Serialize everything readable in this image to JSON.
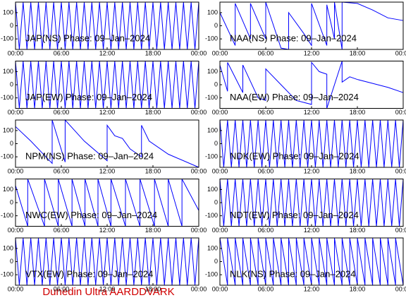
{
  "footer": "Dunedin Ultra AARDDVARK",
  "chart_data": [
    {
      "type": "line",
      "title": "JAP(NS) Phase: 09–Jan–2024",
      "color": "#0000ff",
      "x": [
        0,
        0.5,
        1,
        1.5,
        2,
        2.5,
        3,
        3.5,
        4,
        4.5,
        5,
        5.5,
        6,
        6.5,
        7,
        7.5,
        8,
        8.5,
        9,
        9.5,
        10,
        10.5,
        11,
        11.5,
        12,
        12.5,
        13,
        13.5,
        14,
        14.5,
        15,
        15.5,
        16,
        16.5,
        17,
        17.5,
        18,
        18.5,
        19,
        19.5,
        20,
        20.5,
        21,
        21.5,
        22,
        22.5,
        23,
        23.5,
        24
      ],
      "values": [
        180,
        -180,
        180,
        -180,
        180,
        -180,
        180,
        -180,
        180,
        -180,
        180,
        -180,
        180,
        -180,
        180,
        -180,
        180,
        -180,
        180,
        -180,
        180,
        -180,
        180,
        -180,
        180,
        -180,
        180,
        -180,
        180,
        -180,
        180,
        -180,
        180,
        -180,
        180,
        -180,
        180,
        -180,
        180,
        -180,
        180,
        -180,
        180,
        -180,
        180,
        -180,
        180,
        -180,
        180
      ],
      "xlim": [
        0,
        24
      ],
      "ylim": [
        -180,
        180
      ],
      "yticks": [
        100,
        0,
        -100
      ],
      "xticks": [
        {
          "value": 0,
          "label": "00:00"
        },
        {
          "value": 6,
          "label": "06:00"
        },
        {
          "value": 12,
          "label": "12:00"
        },
        {
          "value": 18,
          "label": "18:00"
        },
        {
          "value": 24,
          "label": "00:00"
        }
      ]
    },
    {
      "type": "line",
      "title": "NAA(NS) Phase: 09–Jan–2024",
      "color": "#0000ff",
      "x": [
        0,
        2,
        2,
        4,
        4,
        6,
        6,
        8,
        9,
        9,
        11,
        12,
        12,
        14,
        14,
        15,
        15,
        16,
        16,
        18,
        20,
        22,
        24
      ],
      "values": [
        100,
        -150,
        170,
        -100,
        170,
        -100,
        180,
        -170,
        -180,
        100,
        -60,
        -150,
        170,
        -150,
        160,
        -100,
        180,
        -180,
        180,
        170,
        120,
        60,
        40
      ],
      "xlim": [
        0,
        24
      ],
      "ylim": [
        -180,
        180
      ],
      "yticks": [
        100,
        0,
        -100
      ],
      "xticks": [
        {
          "value": 0,
          "label": "00:00"
        },
        {
          "value": 6,
          "label": "06:00"
        },
        {
          "value": 12,
          "label": "12:00"
        },
        {
          "value": 18,
          "label": "18:00"
        },
        {
          "value": 24,
          "label": "00:00"
        }
      ]
    },
    {
      "type": "line",
      "title": "JAP(EW) Phase: 09–Jan–2024",
      "color": "#0000ff",
      "x": [
        0,
        0.5,
        1,
        1.5,
        2,
        2.5,
        3,
        3.5,
        4,
        4.5,
        5,
        5.5,
        6,
        6.5,
        7,
        7.5,
        8,
        8.5,
        9,
        9.5,
        10,
        10.5,
        11,
        11.5,
        12,
        12.5,
        13,
        13.5,
        14,
        14.5,
        15,
        15.5,
        16,
        16.5,
        17,
        17.5,
        18,
        18.5,
        19,
        19.5,
        20,
        20.5,
        21,
        21.5,
        22,
        22.5,
        23,
        23.5,
        24
      ],
      "values": [
        180,
        -180,
        180,
        -180,
        180,
        -180,
        180,
        -180,
        180,
        -180,
        180,
        -180,
        180,
        -180,
        180,
        -180,
        180,
        -180,
        180,
        -180,
        180,
        -180,
        180,
        -180,
        180,
        -180,
        180,
        -180,
        180,
        -180,
        180,
        -180,
        180,
        -180,
        180,
        -180,
        180,
        -180,
        180,
        -180,
        180,
        -180,
        180,
        -180,
        180,
        -180,
        180,
        -180,
        180
      ],
      "xlim": [
        0,
        24
      ],
      "ylim": [
        -180,
        180
      ],
      "yticks": [
        100,
        0,
        -100
      ],
      "xticks": [
        {
          "value": 0,
          "label": "00:00"
        },
        {
          "value": 6,
          "label": "06:00"
        },
        {
          "value": 12,
          "label": "12:00"
        },
        {
          "value": 18,
          "label": "18:00"
        },
        {
          "value": 24,
          "label": "00:00"
        }
      ]
    },
    {
      "type": "line",
      "title": "NAA(EW) Phase: 09–Jan–2024",
      "color": "#0000ff",
      "x": [
        0,
        1,
        1,
        3,
        3,
        5,
        6,
        6,
        8,
        10,
        12,
        12,
        13,
        14,
        14,
        16,
        16,
        17,
        18,
        20,
        22,
        24
      ],
      "values": [
        150,
        -50,
        170,
        -60,
        150,
        -100,
        -120,
        120,
        0,
        -120,
        -150,
        170,
        100,
        80,
        -180,
        180,
        20,
        60,
        40,
        10,
        -20,
        -60
      ],
      "xlim": [
        0,
        24
      ],
      "ylim": [
        -180,
        180
      ],
      "yticks": [
        100,
        0,
        -100
      ],
      "xticks": [
        {
          "value": 0,
          "label": "00:00"
        },
        {
          "value": 6,
          "label": "06:00"
        },
        {
          "value": 12,
          "label": "12:00"
        },
        {
          "value": 18,
          "label": "18:00"
        },
        {
          "value": 24,
          "label": "00:00"
        }
      ]
    },
    {
      "type": "line",
      "title": "NPM(NS) Phase: 09–Jan–2024",
      "color": "#0000ff",
      "x": [
        0,
        2,
        4.8,
        4.8,
        6.5,
        6.5,
        9,
        12,
        12,
        13,
        14,
        15,
        16.5,
        16.5,
        17.5,
        20,
        24
      ],
      "values": [
        130,
        20,
        -150,
        180,
        -140,
        180,
        20,
        -130,
        140,
        60,
        40,
        -40,
        -100,
        140,
        20,
        -80,
        -180
      ],
      "xlim": [
        0,
        24
      ],
      "ylim": [
        -180,
        180
      ],
      "yticks": [
        100,
        0,
        -100
      ],
      "xticks": [
        {
          "value": 0,
          "label": "00:00"
        },
        {
          "value": 6,
          "label": "06:00"
        },
        {
          "value": 12,
          "label": "12:00"
        },
        {
          "value": 18,
          "label": "18:00"
        },
        {
          "value": 24,
          "label": "00:00"
        }
      ]
    },
    {
      "type": "line",
      "title": "NDK(EW) Phase: 09–Jan–2024",
      "color": "#0000ff",
      "x": [
        0,
        0.5,
        1,
        1.5,
        2,
        2.5,
        3,
        3.5,
        4,
        4.5,
        5,
        5.5,
        6,
        6.5,
        7,
        7.5,
        8,
        8.5,
        9,
        9.5,
        10,
        10.5,
        11,
        11.5,
        12,
        12.5,
        13,
        13.5,
        14,
        14.5,
        15,
        15.5,
        16,
        16.5,
        17,
        17.5,
        18,
        18.5,
        19,
        19.5,
        20,
        20.5,
        21,
        21.5,
        22,
        22.5,
        23,
        23.5,
        24
      ],
      "values": [
        180,
        -180,
        180,
        -180,
        180,
        -180,
        180,
        -180,
        180,
        -180,
        180,
        -180,
        180,
        -180,
        180,
        -180,
        180,
        -180,
        180,
        -180,
        180,
        -180,
        180,
        -180,
        180,
        -180,
        180,
        -180,
        180,
        -180,
        180,
        -180,
        180,
        -180,
        180,
        -180,
        180,
        -180,
        180,
        -180,
        180,
        -180,
        180,
        -180,
        180,
        -180,
        180,
        -180,
        180
      ],
      "xlim": [
        0,
        24
      ],
      "ylim": [
        -180,
        180
      ],
      "yticks": [
        100,
        0,
        -100
      ],
      "xticks": [
        {
          "value": 0,
          "label": "00:00"
        },
        {
          "value": 6,
          "label": "06:00"
        },
        {
          "value": 12,
          "label": "12:00"
        },
        {
          "value": 18,
          "label": "18:00"
        },
        {
          "value": 24,
          "label": "00:00"
        }
      ]
    },
    {
      "type": "line",
      "title": "NWC(EW) Phase: 09–Jan–2024",
      "color": "#0000ff",
      "x": [
        0,
        1.6,
        1.6,
        3.8,
        3.8,
        5.6,
        5.6,
        7.4,
        7.4,
        9.1,
        9.1,
        10.8,
        10.8,
        12.5,
        12.5,
        14.4,
        14.4,
        16.3,
        16.3,
        18.2,
        18.2,
        20,
        20,
        21.8,
        21.8,
        24
      ],
      "values": [
        130,
        -180,
        180,
        -180,
        180,
        -180,
        180,
        -180,
        180,
        -180,
        180,
        -180,
        180,
        -180,
        180,
        -180,
        180,
        -180,
        180,
        -180,
        180,
        -180,
        180,
        -180,
        180,
        -60
      ],
      "xlim": [
        0,
        24
      ],
      "ylim": [
        -180,
        180
      ],
      "yticks": [
        100,
        0,
        -100
      ],
      "xticks": [
        {
          "value": 0,
          "label": "00:00"
        },
        {
          "value": 6,
          "label": "06:00"
        },
        {
          "value": 12,
          "label": "12:00"
        },
        {
          "value": 18,
          "label": "18:00"
        },
        {
          "value": 24,
          "label": "00:00"
        }
      ]
    },
    {
      "type": "line",
      "title": "NDT(EW) Phase: 09–Jan–2024",
      "color": "#0000ff",
      "x": [
        0,
        0.5,
        1,
        1.5,
        2,
        2.5,
        3,
        3.5,
        4,
        4.5,
        5,
        5.5,
        6,
        6.5,
        7,
        7.5,
        8,
        8.5,
        9,
        9.5,
        10,
        10.5,
        11,
        11.5,
        12,
        12.5,
        13,
        13.5,
        14,
        14.5,
        15,
        15.5,
        16,
        16.5,
        17,
        17.5,
        18,
        18.5,
        19,
        19.5,
        20,
        20.5,
        21,
        21.5,
        22,
        22.5,
        23,
        23.5,
        24
      ],
      "values": [
        180,
        -180,
        180,
        -180,
        180,
        -180,
        180,
        -180,
        180,
        -180,
        180,
        -180,
        180,
        -180,
        180,
        -180,
        180,
        -180,
        180,
        -180,
        180,
        -180,
        180,
        -180,
        180,
        -180,
        180,
        -180,
        180,
        -180,
        180,
        -180,
        180,
        -180,
        180,
        -180,
        180,
        -180,
        180,
        -180,
        180,
        -180,
        180,
        -180,
        180,
        -180,
        180,
        -180,
        180
      ],
      "xlim": [
        0,
        24
      ],
      "ylim": [
        -180,
        180
      ],
      "yticks": [
        100,
        0,
        -100
      ],
      "xticks": [
        {
          "value": 0,
          "label": "00:00"
        },
        {
          "value": 6,
          "label": "06:00"
        },
        {
          "value": 12,
          "label": "12:00"
        },
        {
          "value": 18,
          "label": "18:00"
        },
        {
          "value": 24,
          "label": "00:00"
        }
      ]
    },
    {
      "type": "line",
      "title": "VTX(EW) Phase: 09–Jan–2024",
      "color": "#0000ff",
      "x": [
        0,
        0.5,
        1,
        1.5,
        2,
        2.5,
        3,
        3.5,
        4,
        4.5,
        5,
        5.5,
        6,
        6.5,
        7,
        7.5,
        8,
        8.5,
        9,
        9.5,
        10,
        10.5,
        11,
        11.5,
        12,
        12.5,
        13,
        13.5,
        14,
        14.5,
        15,
        15.5,
        16,
        16.5,
        17,
        17.5,
        18,
        18.5,
        19,
        19.5,
        20,
        20.5,
        21,
        21.5,
        22,
        22.5,
        23,
        23.5,
        24
      ],
      "values": [
        180,
        -180,
        180,
        -180,
        180,
        -180,
        180,
        -180,
        180,
        -180,
        180,
        -180,
        180,
        -180,
        180,
        -180,
        180,
        -180,
        180,
        -180,
        180,
        -180,
        180,
        -180,
        180,
        -180,
        180,
        -180,
        180,
        -180,
        180,
        -180,
        180,
        -180,
        180,
        -180,
        180,
        -180,
        180,
        -180,
        180,
        -180,
        180,
        -180,
        180,
        -180,
        180,
        -180,
        180
      ],
      "xlim": [
        0,
        24
      ],
      "ylim": [
        -180,
        180
      ],
      "yticks": [
        100,
        0,
        -100
      ],
      "xticks": [
        {
          "value": 0,
          "label": "00:00"
        },
        {
          "value": 6,
          "label": "06:00"
        },
        {
          "value": 12,
          "label": "12:00"
        },
        {
          "value": 18,
          "label": "18:00"
        },
        {
          "value": 24,
          "label": "00:00"
        }
      ]
    },
    {
      "type": "line",
      "title": "NLK(NS) Phase: 09–Jan–2024",
      "color": "#0000ff",
      "x": [
        0,
        1,
        1,
        2,
        2,
        3,
        3,
        4,
        4,
        5,
        5,
        6,
        6,
        7,
        7,
        8,
        8,
        9,
        9,
        10,
        10,
        11,
        11,
        12,
        12,
        13,
        13,
        14,
        14,
        15,
        15,
        16,
        16,
        17,
        17,
        18,
        18,
        19,
        19,
        20,
        20,
        21,
        21,
        22,
        22,
        23,
        23,
        24
      ],
      "values": [
        180,
        -180,
        180,
        -180,
        180,
        -180,
        180,
        -180,
        180,
        -180,
        180,
        -180,
        180,
        -180,
        180,
        -180,
        180,
        -180,
        180,
        -180,
        180,
        -180,
        180,
        -180,
        180,
        -180,
        180,
        -180,
        180,
        -180,
        180,
        -180,
        180,
        -180,
        180,
        -180,
        180,
        -180,
        180,
        -180,
        180,
        -180,
        180,
        -180,
        180,
        -180,
        180,
        -180
      ],
      "xlim": [
        0,
        24
      ],
      "ylim": [
        -180,
        180
      ],
      "yticks": [
        100,
        0,
        -100
      ],
      "xticks": [
        {
          "value": 0,
          "label": "00:00"
        },
        {
          "value": 6,
          "label": "06:00"
        },
        {
          "value": 12,
          "label": "12:00"
        },
        {
          "value": 18,
          "label": "18:00"
        },
        {
          "value": 24,
          "label": "00:00"
        }
      ]
    }
  ]
}
